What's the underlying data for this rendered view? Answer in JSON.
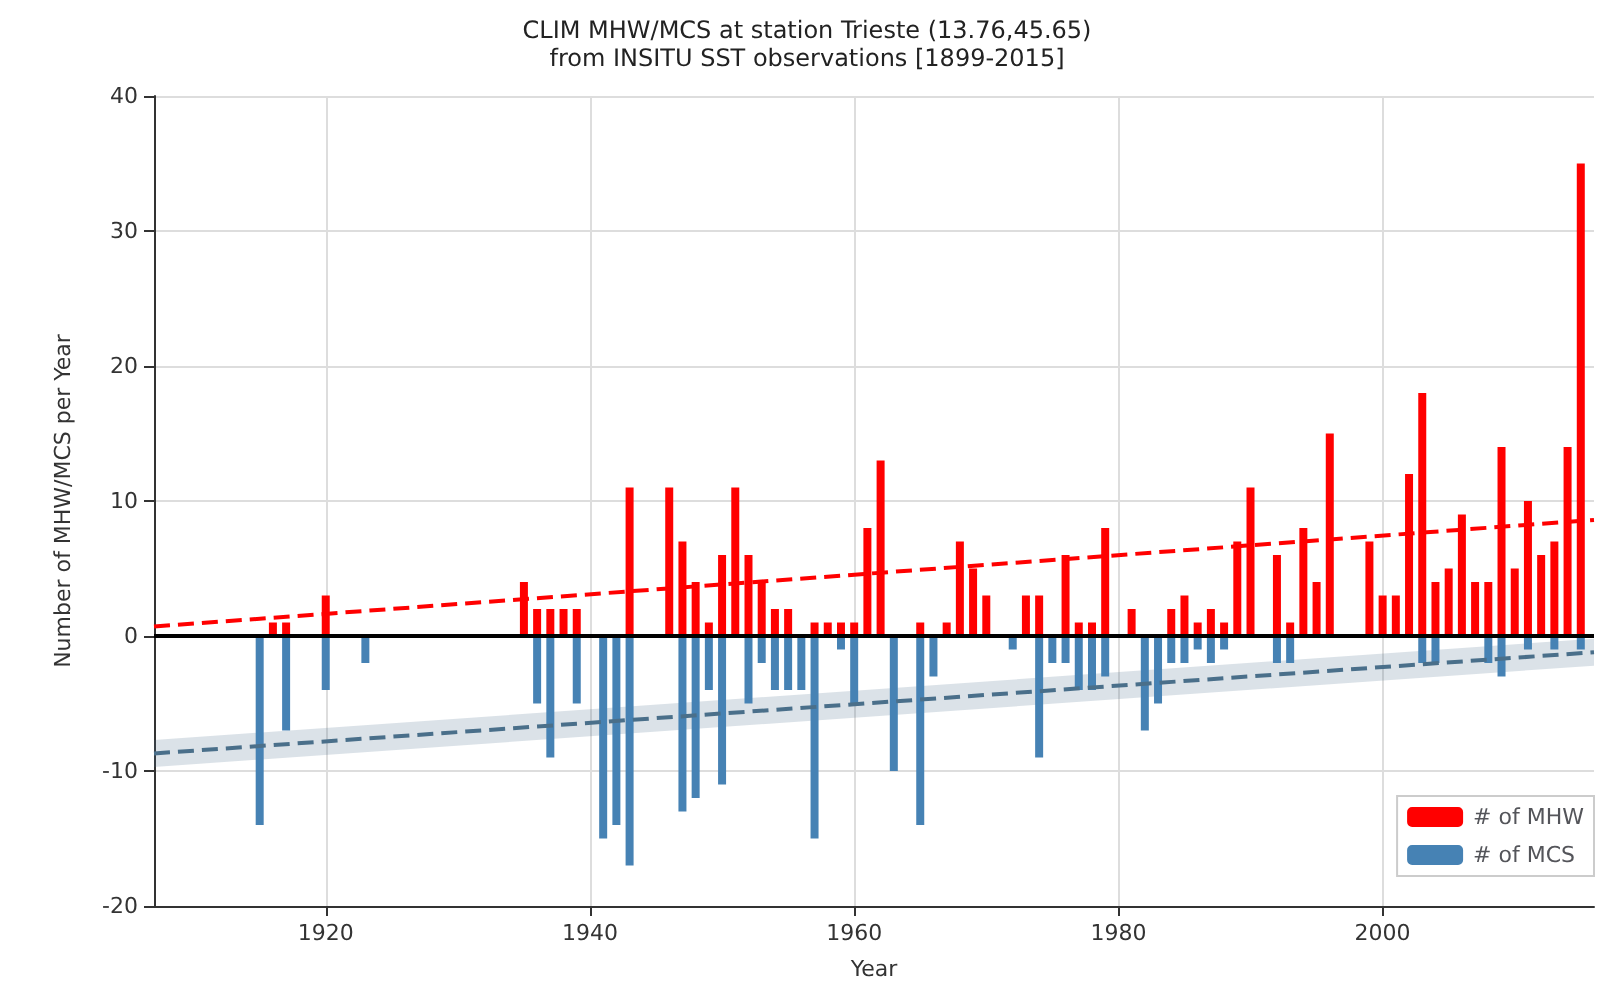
{
  "chart_data": {
    "type": "bar",
    "title": "CLIM MHW/MCS at station Trieste (13.76,45.65)",
    "subtitle": "from INSITU SST observations [1899-2015]",
    "xlabel": "Year",
    "ylabel": "Number of MHW/MCS per Year",
    "xlim": [
      1907,
      2016
    ],
    "xticks": [
      1920,
      1940,
      1960,
      1980,
      2000
    ],
    "ylim": [
      -20,
      40
    ],
    "yticks": [
      -20,
      -10,
      0,
      10,
      20,
      30,
      40
    ],
    "series": [
      {
        "name": "# of MHW",
        "color": "#ff0000",
        "x": [
          1916,
          1917,
          1920,
          1935,
          1936,
          1937,
          1938,
          1939,
          1943,
          1946,
          1947,
          1948,
          1949,
          1950,
          1951,
          1952,
          1953,
          1954,
          1955,
          1957,
          1958,
          1959,
          1960,
          1961,
          1962,
          1965,
          1967,
          1968,
          1969,
          1970,
          1973,
          1974,
          1976,
          1977,
          1978,
          1979,
          1981,
          1984,
          1985,
          1986,
          1987,
          1988,
          1989,
          1990,
          1992,
          1993,
          1994,
          1995,
          1996,
          1999,
          2000,
          2001,
          2002,
          2003,
          2004,
          2005,
          2006,
          2007,
          2008,
          2009,
          2010,
          2011,
          2012,
          2013,
          2014,
          2015
        ],
        "values": [
          1,
          1,
          3,
          4,
          2,
          2,
          2,
          2,
          11,
          11,
          7,
          4,
          1,
          6,
          11,
          6,
          4,
          2,
          2,
          1,
          1,
          1,
          1,
          8,
          13,
          1,
          1,
          7,
          5,
          3,
          3,
          3,
          6,
          1,
          1,
          8,
          2,
          2,
          3,
          1,
          2,
          1,
          7,
          11,
          6,
          1,
          8,
          4,
          15,
          7,
          3,
          3,
          12,
          18,
          4,
          5,
          9,
          4,
          4,
          14,
          5,
          10,
          6,
          7,
          14,
          35
        ]
      },
      {
        "name": "# of MCS",
        "color": "#4682b4",
        "x": [
          1915,
          1917,
          1920,
          1923,
          1936,
          1937,
          1939,
          1941,
          1942,
          1943,
          1947,
          1948,
          1949,
          1950,
          1952,
          1953,
          1954,
          1955,
          1956,
          1957,
          1959,
          1960,
          1963,
          1965,
          1966,
          1972,
          1974,
          1975,
          1976,
          1977,
          1978,
          1979,
          1982,
          1983,
          1984,
          1985,
          1986,
          1987,
          1988,
          1992,
          1993,
          2003,
          2004,
          2008,
          2009,
          2011,
          2013,
          2015
        ],
        "values": [
          -14,
          -7,
          -4,
          -2,
          -5,
          -9,
          -5,
          -15,
          -14,
          -17,
          -13,
          -12,
          -4,
          -11,
          -5,
          -2,
          -4,
          -4,
          -4,
          -15,
          -1,
          -5,
          -10,
          -14,
          -3,
          -1,
          -9,
          -2,
          -2,
          -4,
          -4,
          -3,
          -7,
          -5,
          -2,
          -2,
          -1,
          -2,
          -1,
          -2,
          -2,
          -2,
          -2,
          -2,
          -3,
          -1,
          -1,
          -1
        ]
      },
      {
        "type": "line",
        "color": "#ff0000",
        "line_style": "dashed",
        "x": [
          1907,
          2016
        ],
        "values": [
          0.7,
          8.6
        ]
      },
      {
        "type": "line",
        "color": "#4a6f8a",
        "line_style": "dashed",
        "x": [
          1907,
          2016
        ],
        "values": [
          -8.7,
          -1.2
        ],
        "lower": [
          -9.7,
          -2.2
        ],
        "upper": [
          -7.7,
          -0.2
        ]
      }
    ],
    "ref_lines": [
      {
        "axis": "y",
        "value": 0,
        "color": "#000000"
      }
    ],
    "grid": true,
    "legend": "bottom right"
  }
}
